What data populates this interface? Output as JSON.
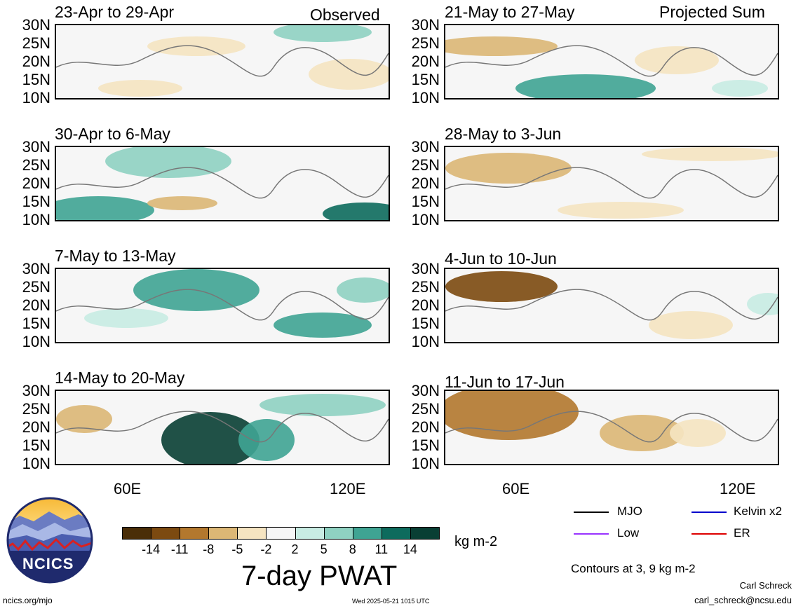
{
  "labels": {
    "observed": "Observed",
    "projected": "Projected Sum"
  },
  "lat_ticks": [
    "30N",
    "25N",
    "20N",
    "15N",
    "10N"
  ],
  "lon_ticks": [
    "60E",
    "120E"
  ],
  "panels_left": [
    {
      "title": "23-Apr to 29-Apr"
    },
    {
      "title": "30-Apr to 6-May"
    },
    {
      "title": "7-May to 13-May"
    },
    {
      "title": "14-May to 20-May"
    }
  ],
  "panels_right": [
    {
      "title": "21-May to 27-May"
    },
    {
      "title": "28-May to 3-Jun"
    },
    {
      "title": "4-Jun to 10-Jun"
    },
    {
      "title": "11-Jun to 17-Jun"
    }
  ],
  "colorbar": {
    "ticks": [
      "-14",
      "-11",
      "-8",
      "-5",
      "-2",
      "2",
      "5",
      "8",
      "11",
      "14"
    ],
    "units": "kg m-2",
    "colors": [
      "#4a2e08",
      "#7c4a10",
      "#b3782e",
      "#dcb775",
      "#f5e4c1",
      "#f6f6f6",
      "#c8ece3",
      "#8fd2c2",
      "#3fa493",
      "#0d6b5d",
      "#093f34"
    ],
    "title": "7-day PWAT"
  },
  "legend": {
    "items": [
      {
        "label": "MJO",
        "color": "#000000"
      },
      {
        "label": "Kelvin x2",
        "color": "#0000cc"
      },
      {
        "label": "Low",
        "color": "#9933ff"
      },
      {
        "label": "ER",
        "color": "#dd0000"
      }
    ],
    "contours": "Contours at 3, 9 kg m-2"
  },
  "logo": {
    "text": "NCICS"
  },
  "footer": {
    "site": "ncics.org/mjo",
    "timestamp": "Wed 2025-05-21 1015 UTC",
    "author": "Carl Schreck",
    "email": "carl_schreck@ncsu.edu"
  }
}
